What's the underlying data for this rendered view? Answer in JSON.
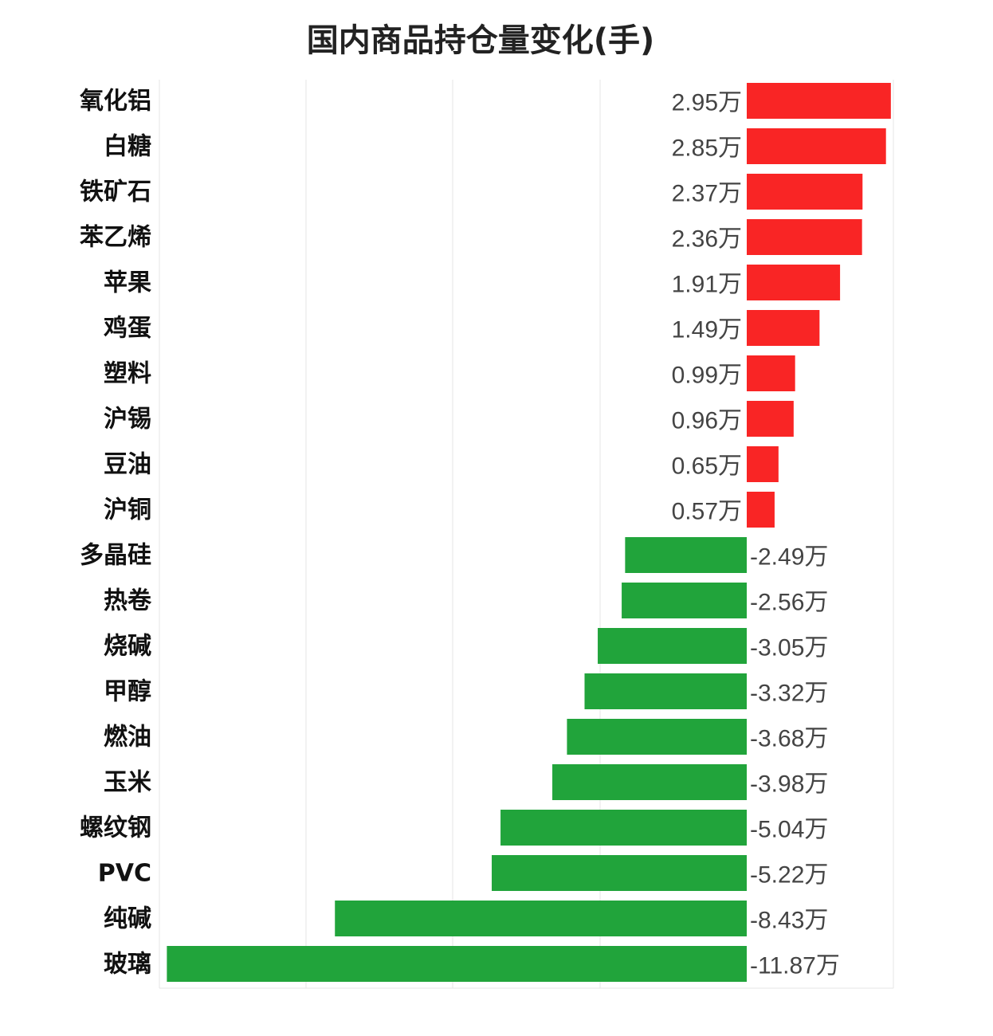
{
  "chart_data": {
    "type": "bar",
    "orientation": "horizontal",
    "title": "国内商品持仓量变化(手)",
    "unit_suffix": "万",
    "categories": [
      "氧化铝",
      "白糖",
      "铁矿石",
      "苯乙烯",
      "苹果",
      "鸡蛋",
      "塑料",
      "沪锡",
      "豆油",
      "沪铜",
      "多晶硅",
      "热卷",
      "烧碱",
      "甲醇",
      "燃油",
      "玉米",
      "螺纹钢",
      "PVC",
      "纯碱",
      "玻璃"
    ],
    "values": [
      2.95,
      2.85,
      2.37,
      2.36,
      1.91,
      1.49,
      0.99,
      0.96,
      0.65,
      0.57,
      -2.49,
      -2.56,
      -3.05,
      -3.32,
      -3.68,
      -3.98,
      -5.04,
      -5.22,
      -8.43,
      -11.87
    ],
    "value_labels": [
      "2.95万",
      "2.85万",
      "2.37万",
      "2.36万",
      "1.91万",
      "1.49万",
      "0.99万",
      "0.96万",
      "0.65万",
      "0.57万",
      "-2.49万",
      "-2.56万",
      "-3.05万",
      "-3.32万",
      "-3.68万",
      "-3.98万",
      "-5.04万",
      "-5.22万",
      "-8.43万",
      "-11.87万"
    ],
    "xlim": [
      -12,
      3
    ],
    "grid": true,
    "legend": "none",
    "colors": {
      "positive": "#f92525",
      "negative": "#21a43b",
      "grid": "#e6e6e6"
    }
  }
}
